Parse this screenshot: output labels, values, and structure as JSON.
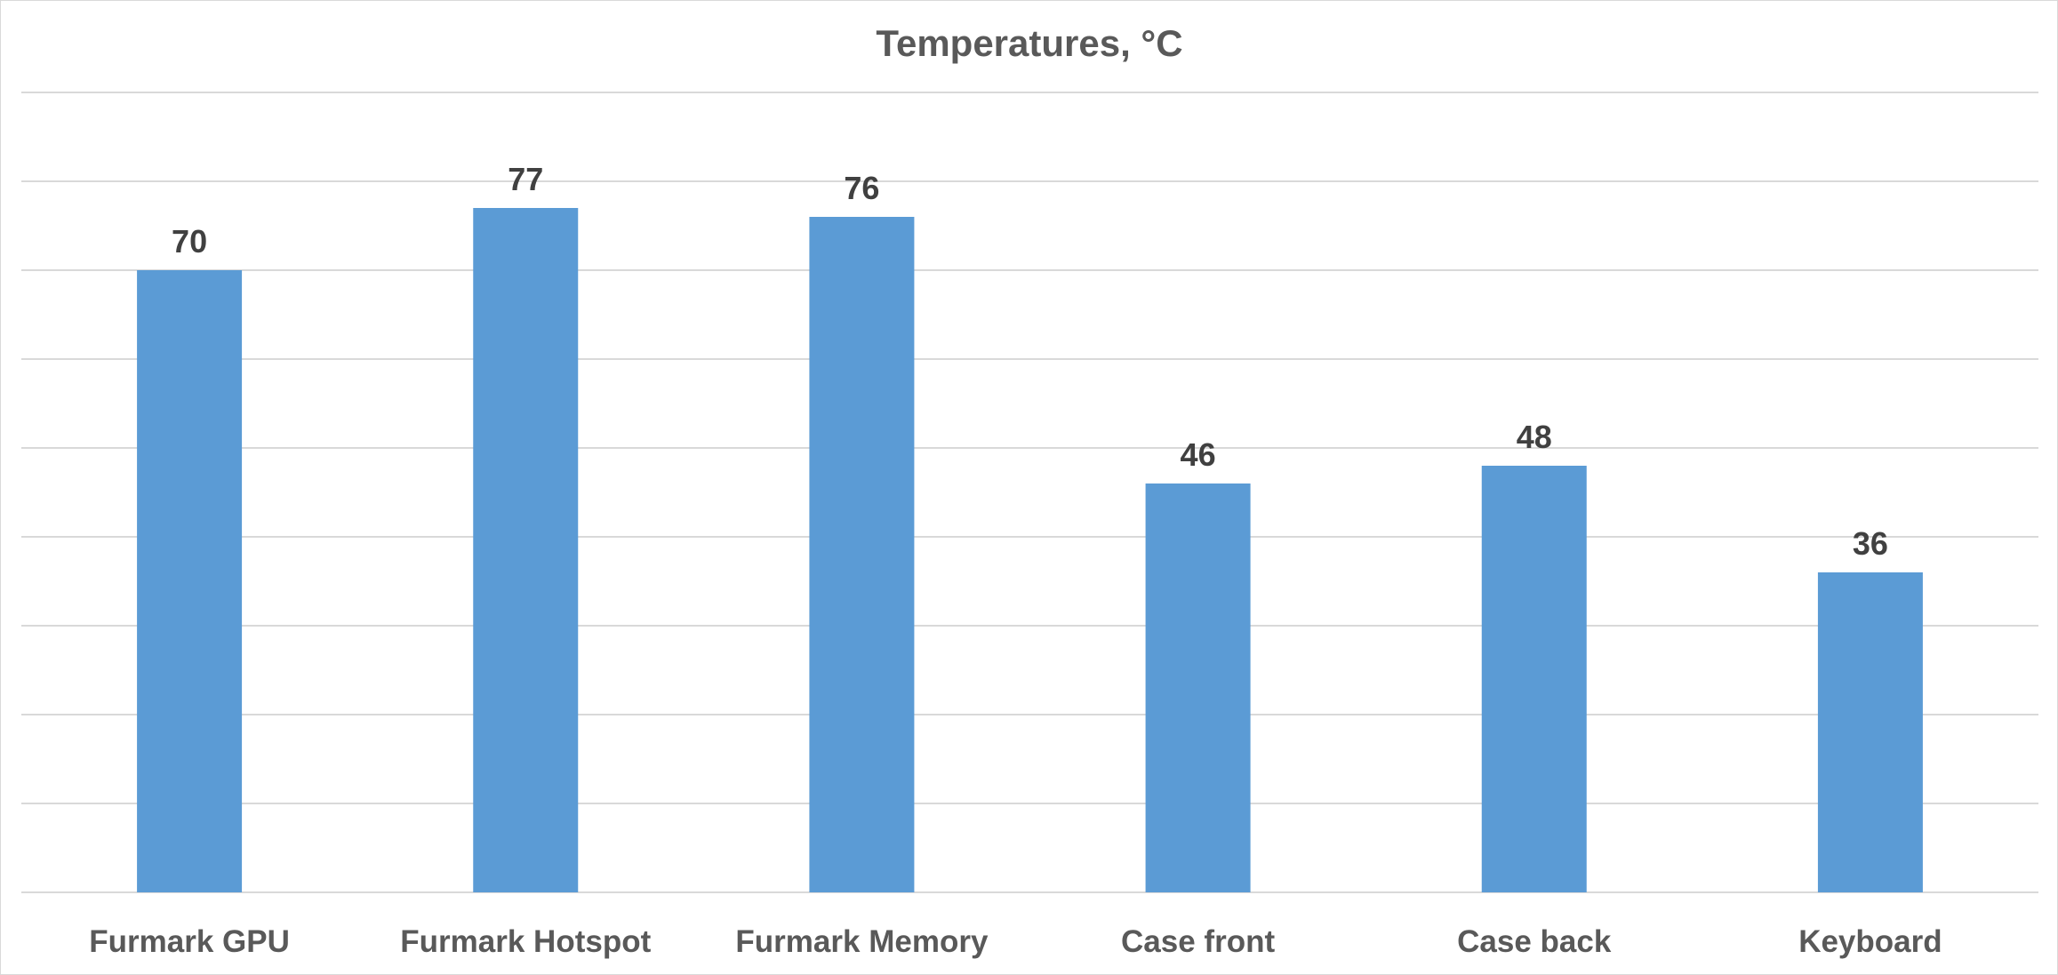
{
  "chart_data": {
    "type": "bar",
    "title": "Temperatures, °C",
    "xlabel": "",
    "ylabel": "",
    "categories": [
      "Furmark GPU",
      "Furmark Hotspot",
      "Furmark Memory",
      "Case front",
      "Case back",
      "Keyboard"
    ],
    "values": [
      70,
      77,
      76,
      46,
      48,
      36
    ],
    "ylim": [
      0,
      90
    ],
    "ytick_step": 10,
    "y_tick_labels_visible": false,
    "grid": true,
    "legend": "none",
    "data_labels": true,
    "colors": {
      "bar": "#5b9bd5",
      "grid": "#d9d9d9",
      "title": "#595959",
      "data_label": "#404040",
      "tick_label": "#595959"
    }
  }
}
